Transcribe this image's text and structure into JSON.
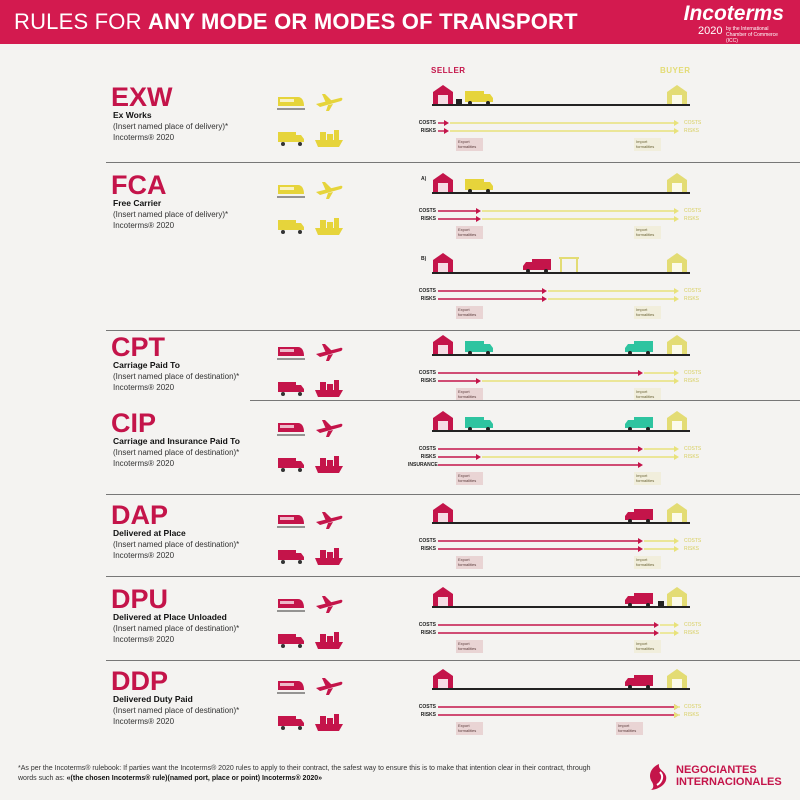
{
  "header": {
    "title_light": "RULES FOR ",
    "title_bold": "ANY MODE OR MODES OF TRANSPORT",
    "logo_name": "Incoterms",
    "logo_year": "2020",
    "logo_sub": "by the International Chamber of Commerce (ICC)"
  },
  "columns": {
    "seller": "SELLER",
    "buyer": "BUYER"
  },
  "labels": {
    "costs": "COSTS",
    "risks": "RISKS",
    "insurance": "INSURANCE",
    "export": "Export formalities",
    "import": "Import formalities",
    "variant_a": "A)",
    "variant_b": "B)"
  },
  "colors": {
    "accent": "#c4144a",
    "buyer": "#e3dc74",
    "seller_line": "#c4144a",
    "buyer_line": "#e8e27a",
    "truck_teal": "#2ec4a0"
  },
  "rules": [
    {
      "code": "EXW",
      "name": "Ex Works",
      "note": "(Insert named place of delivery)*",
      "edition": "Incoterms® 2020",
      "group": "E"
    },
    {
      "code": "FCA",
      "name": "Free Carrier",
      "note": "(Insert named place of delivery)*",
      "edition": "Incoterms® 2020",
      "group": "F"
    },
    {
      "code": "CPT",
      "name": "Carriage Paid To",
      "note": "(Insert named place of destination)*",
      "edition": "Incoterms® 2020",
      "group": "C"
    },
    {
      "code": "CIP",
      "name": "Carriage and Insurance Paid To",
      "note": "(Insert named place of destination)*",
      "edition": "Incoterms® 2020",
      "group": "C"
    },
    {
      "code": "DAP",
      "name": "Delivered at Place",
      "note": "(Insert named place of destination)*",
      "edition": "Incoterms® 2020",
      "group": "D"
    },
    {
      "code": "DPU",
      "name": "Delivered at Place Unloaded",
      "note": "(Insert named place of destination)*",
      "edition": "Incoterms® 2020",
      "group": "D"
    },
    {
      "code": "DDP",
      "name": "Delivered Duty Paid",
      "note": "(Insert named place of destination)*",
      "edition": "Incoterms® 2020",
      "group": "D"
    }
  ],
  "footnote": {
    "text": "*As per the Incoterms® rulebook: If parties want the Incoterms® 2020 rules to apply to their contract, the safest way to ensure this is to make that intention clear in their contract, through words such as: ",
    "bold": "«(the chosen Incoterms® rule)(named port, place or point) Incoterms® 2020»"
  },
  "brand": {
    "line1": "NEGOCIANTES",
    "line2": "INTERNACIONALES"
  }
}
